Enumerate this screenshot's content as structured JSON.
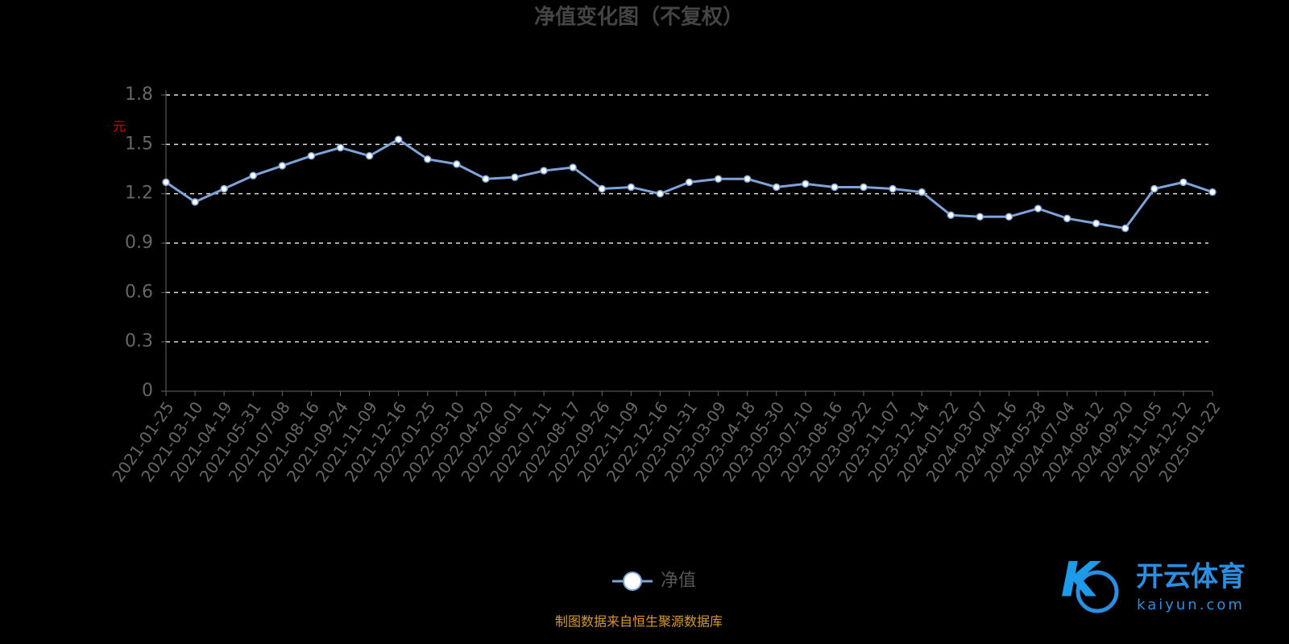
{
  "chart_data": {
    "type": "line",
    "title": "净值变化图（不复权）",
    "y_label": "元",
    "categories": [
      "2021-01-25",
      "2021-03-10",
      "2021-04-19",
      "2021-05-31",
      "2021-07-08",
      "2021-08-16",
      "2021-09-24",
      "2021-11-09",
      "2021-12-16",
      "2022-01-25",
      "2022-03-10",
      "2022-04-20",
      "2022-06-01",
      "2022-07-11",
      "2022-08-17",
      "2022-09-26",
      "2022-11-09",
      "2022-12-16",
      "2023-01-31",
      "2023-03-09",
      "2023-04-18",
      "2023-05-30",
      "2023-07-10",
      "2023-08-16",
      "2023-09-22",
      "2023-11-07",
      "2023-12-14",
      "2024-01-22",
      "2024-03-07",
      "2024-04-16",
      "2024-05-28",
      "2024-07-04",
      "2024-08-12",
      "2024-09-20",
      "2024-11-05",
      "2024-12-12",
      "2025-01-22"
    ],
    "series": [
      {
        "name": "净值",
        "color": "#7ea3d8",
        "values": [
          1.27,
          1.15,
          1.23,
          1.31,
          1.37,
          1.43,
          1.48,
          1.43,
          1.53,
          1.41,
          1.38,
          1.29,
          1.3,
          1.34,
          1.36,
          1.23,
          1.24,
          1.2,
          1.27,
          1.29,
          1.29,
          1.24,
          1.26,
          1.24,
          1.24,
          1.23,
          1.21,
          1.07,
          1.06,
          1.06,
          1.11,
          1.05,
          1.02,
          0.99,
          1.23,
          1.27,
          1.21
        ]
      }
    ],
    "ylim": [
      0,
      1.8
    ],
    "yticks": [
      0,
      0.3,
      0.6,
      0.9,
      1.2,
      1.5,
      1.8
    ],
    "grid": true,
    "source": "制图数据来自恒生聚源数据库"
  },
  "watermark": {
    "name": "开云体育",
    "url": "kaiyun.com"
  }
}
